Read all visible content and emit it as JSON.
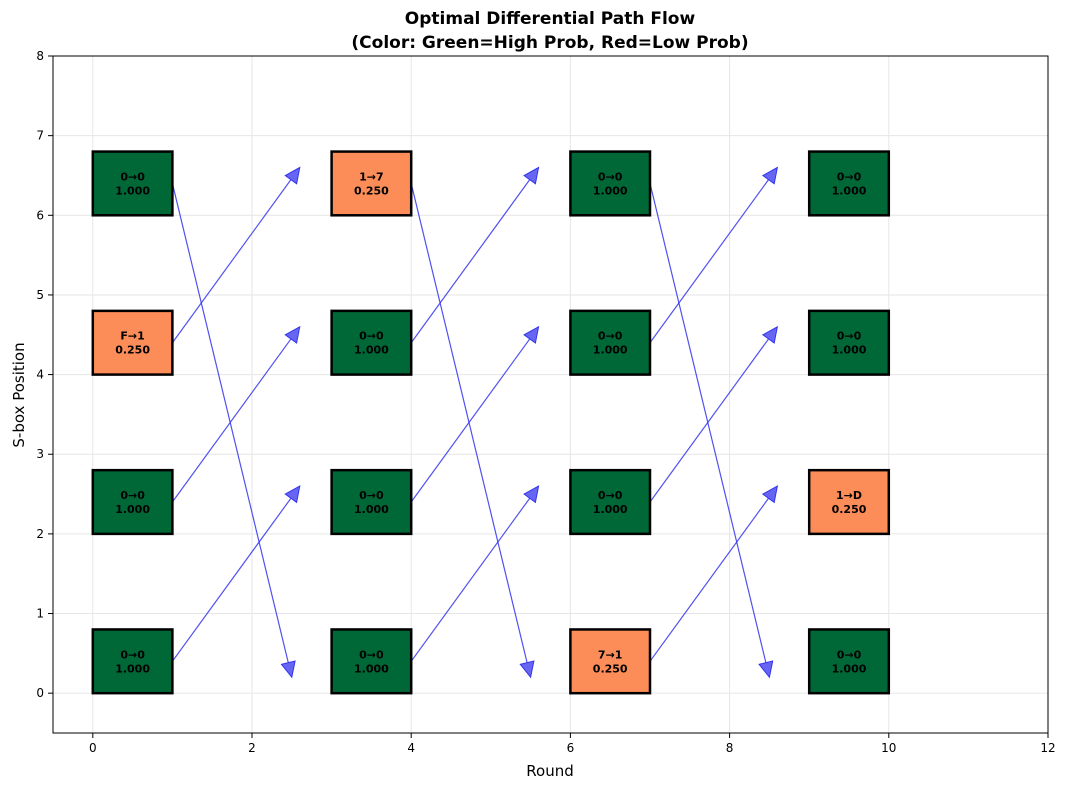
{
  "chart_data": {
    "type": "diagram",
    "title": "Optimal Differential Path Flow",
    "subtitle": "(Color: Green=High Prob, Red=Low Prob)",
    "xlabel": "Round",
    "ylabel": "S-box Position",
    "xlim": [
      -0.5,
      12
    ],
    "ylim": [
      -0.5,
      8
    ],
    "xticks": [
      0,
      2,
      4,
      6,
      8,
      10,
      12
    ],
    "yticks": [
      0,
      1,
      2,
      3,
      4,
      5,
      6,
      7,
      8
    ],
    "grid": true,
    "colors": {
      "high": "#006837",
      "low": "#fc8d59",
      "arrow": "#3333ee"
    },
    "box_size": [
      1,
      0.8
    ],
    "boxes": [
      {
        "x": 0,
        "y": 0,
        "label": "0→0",
        "prob": "1.000",
        "level": "high"
      },
      {
        "x": 0,
        "y": 2,
        "label": "0→0",
        "prob": "1.000",
        "level": "high"
      },
      {
        "x": 0,
        "y": 4,
        "label": "F→1",
        "prob": "0.250",
        "level": "low"
      },
      {
        "x": 0,
        "y": 6,
        "label": "0→0",
        "prob": "1.000",
        "level": "high"
      },
      {
        "x": 3,
        "y": 0,
        "label": "0→0",
        "prob": "1.000",
        "level": "high"
      },
      {
        "x": 3,
        "y": 2,
        "label": "0→0",
        "prob": "1.000",
        "level": "high"
      },
      {
        "x": 3,
        "y": 4,
        "label": "0→0",
        "prob": "1.000",
        "level": "high"
      },
      {
        "x": 3,
        "y": 6,
        "label": "1→7",
        "prob": "0.250",
        "level": "low"
      },
      {
        "x": 6,
        "y": 0,
        "label": "7→1",
        "prob": "0.250",
        "level": "low"
      },
      {
        "x": 6,
        "y": 2,
        "label": "0→0",
        "prob": "1.000",
        "level": "high"
      },
      {
        "x": 6,
        "y": 4,
        "label": "0→0",
        "prob": "1.000",
        "level": "high"
      },
      {
        "x": 6,
        "y": 6,
        "label": "0→0",
        "prob": "1.000",
        "level": "high"
      },
      {
        "x": 9,
        "y": 0,
        "label": "0→0",
        "prob": "1.000",
        "level": "high"
      },
      {
        "x": 9,
        "y": 2,
        "label": "1→D",
        "prob": "0.250",
        "level": "low"
      },
      {
        "x": 9,
        "y": 4,
        "label": "0→0",
        "prob": "1.000",
        "level": "high"
      },
      {
        "x": 9,
        "y": 6,
        "label": "0→0",
        "prob": "1.000",
        "level": "high"
      }
    ],
    "arrows": [
      {
        "from": [
          1,
          0.4
        ],
        "to": [
          2.6,
          2.6
        ]
      },
      {
        "from": [
          1,
          2.4
        ],
        "to": [
          2.6,
          4.6
        ]
      },
      {
        "from": [
          1,
          4.4
        ],
        "to": [
          2.6,
          6.6
        ]
      },
      {
        "from": [
          1,
          6.4
        ],
        "to": [
          2.5,
          0.2
        ]
      },
      {
        "from": [
          4,
          0.4
        ],
        "to": [
          5.6,
          2.6
        ]
      },
      {
        "from": [
          4,
          2.4
        ],
        "to": [
          5.6,
          4.6
        ]
      },
      {
        "from": [
          4,
          4.4
        ],
        "to": [
          5.6,
          6.6
        ]
      },
      {
        "from": [
          4,
          6.4
        ],
        "to": [
          5.5,
          0.2
        ]
      },
      {
        "from": [
          7,
          0.4
        ],
        "to": [
          8.6,
          2.6
        ]
      },
      {
        "from": [
          7,
          2.4
        ],
        "to": [
          8.6,
          4.6
        ]
      },
      {
        "from": [
          7,
          4.4
        ],
        "to": [
          8.6,
          6.6
        ]
      },
      {
        "from": [
          7,
          6.4
        ],
        "to": [
          8.5,
          0.2
        ]
      }
    ]
  }
}
